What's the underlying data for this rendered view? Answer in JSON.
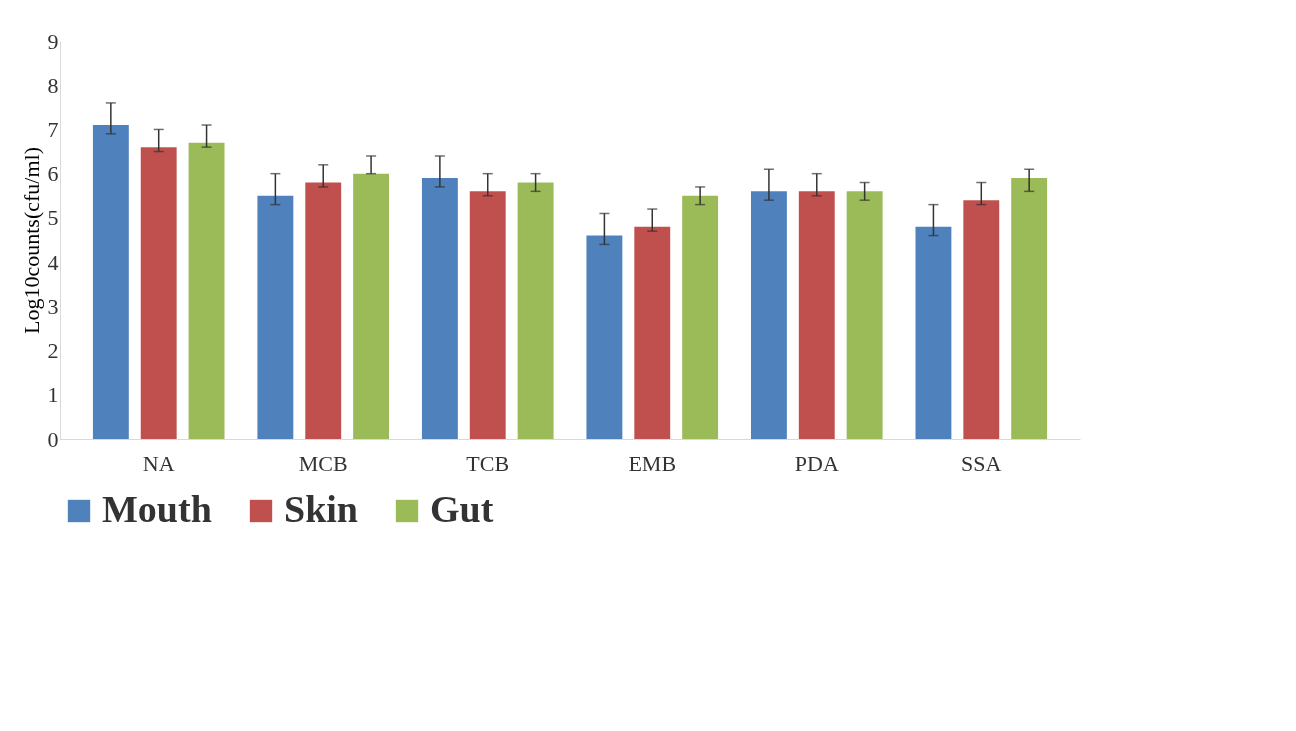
{
  "chart_data": {
    "type": "bar",
    "ylabel": "Log10counts(cfu/ml)",
    "categories": [
      "NA",
      "MCB",
      "TCB",
      "EMB",
      "PDA",
      "SSA"
    ],
    "series": [
      {
        "name": "Mouth",
        "color": "#4f81bd",
        "values": [
          7.1,
          5.5,
          5.9,
          4.6,
          5.6,
          4.8
        ],
        "errors": [
          [
            6.9,
            7.6
          ],
          [
            5.3,
            6.0
          ],
          [
            5.7,
            6.4
          ],
          [
            4.4,
            5.1
          ],
          [
            5.4,
            6.1
          ],
          [
            4.6,
            5.3
          ]
        ]
      },
      {
        "name": "Skin",
        "color": "#c0504d",
        "values": [
          6.6,
          5.8,
          5.6,
          4.8,
          5.6,
          5.4
        ],
        "errors": [
          [
            6.5,
            7.0
          ],
          [
            5.7,
            6.2
          ],
          [
            5.5,
            6.0
          ],
          [
            4.7,
            5.2
          ],
          [
            5.5,
            6.0
          ],
          [
            5.3,
            5.8
          ]
        ]
      },
      {
        "name": "Gut",
        "color": "#9bbb59",
        "values": [
          6.7,
          6.0,
          5.8,
          5.5,
          5.6,
          5.9
        ],
        "errors": [
          [
            6.6,
            7.1
          ],
          [
            6.0,
            6.4
          ],
          [
            5.6,
            6.0
          ],
          [
            5.3,
            5.7
          ],
          [
            5.4,
            5.8
          ],
          [
            5.6,
            6.1
          ]
        ]
      }
    ],
    "ylim": [
      0,
      9
    ],
    "yticks": [
      0,
      1,
      2,
      3,
      4,
      5,
      6,
      7,
      8,
      9
    ],
    "legend": "bottom"
  }
}
